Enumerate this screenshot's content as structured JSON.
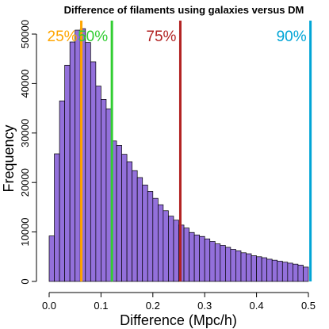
{
  "chart_data": {
    "type": "bar",
    "title": "Difference of filaments using galaxies versus DM",
    "xlabel": "Difference (Mpc/h)",
    "ylabel": "Frequency",
    "xlim": [
      0,
      0.5
    ],
    "ylim": [
      0,
      50000
    ],
    "x_ticks": [
      "0.0",
      "0.1",
      "0.2",
      "0.3",
      "0.4",
      "0.5"
    ],
    "y_ticks": [
      "0",
      "10000",
      "20000",
      "30000",
      "40000",
      "50000"
    ],
    "bin_width": 0.01,
    "bin_start": 0,
    "bar_color": "#9370DB",
    "values": [
      9200,
      25800,
      36500,
      43700,
      48400,
      50800,
      51100,
      48300,
      44400,
      39500,
      36800,
      34900,
      28400,
      27500,
      25700,
      24200,
      22400,
      21000,
      19500,
      18200,
      16800,
      15500,
      14300,
      13200,
      12400,
      11400,
      10800,
      9900,
      9400,
      9100,
      8600,
      8100,
      7600,
      7300,
      6900,
      6500,
      6200,
      5800,
      5600,
      5200,
      5000,
      4800,
      4500,
      4300,
      4100,
      3900,
      3700,
      3500,
      3300,
      2900
    ],
    "percentile_lines": [
      {
        "label": "25%",
        "x": 0.062,
        "color": "#FFA500"
      },
      {
        "label": "50%",
        "x": 0.121,
        "color": "#32CD32"
      },
      {
        "label": "75%",
        "x": 0.253,
        "color": "#B22222"
      },
      {
        "label": "90%",
        "x": 0.504,
        "color": "#00A5D6"
      }
    ]
  }
}
